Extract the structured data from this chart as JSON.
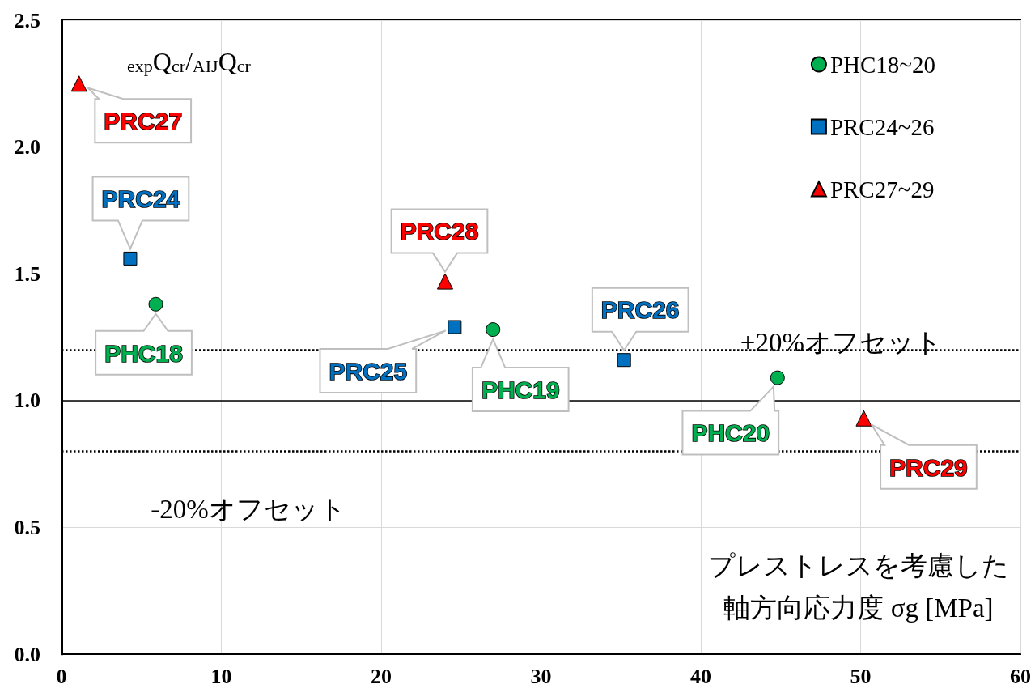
{
  "chart_data": {
    "type": "scatter",
    "ylabel": "$_{exp}$Q$_{cr}$/$_{AIJ}$Q$_{cr}$",
    "xlabel": "プレストレスを考慮した軸方向応力度 σg [MPa]",
    "xlim": [
      0,
      60
    ],
    "ylim": [
      0,
      2.5
    ],
    "xticks": [
      0,
      10,
      20,
      30,
      40,
      50,
      60
    ],
    "yticks": [
      {
        "value": 0,
        "label": "0.0"
      },
      0.5,
      {
        "value": 1,
        "label": "1.0"
      },
      1.5,
      {
        "value": 2,
        "label": "2.0"
      },
      2.5
    ],
    "grid": true,
    "legend": "top right",
    "series": [
      {
        "name": "PHC18~20",
        "color": "#00b050",
        "marker": "circle",
        "x": [
          5.9,
          27.0,
          44.8
        ],
        "values": [
          1.38,
          1.28,
          1.09
        ]
      },
      {
        "name": "PRC24~26",
        "color": "#0070c0",
        "marker": "square",
        "x": [
          4.3,
          24.6,
          35.2
        ],
        "values": [
          1.56,
          1.29,
          1.16
        ]
      },
      {
        "name": "PRC27~29",
        "color": "#ff0000",
        "marker": "triangle",
        "x": [
          1.1,
          24.0,
          50.2
        ],
        "values": [
          2.25,
          1.47,
          0.93
        ]
      }
    ],
    "ref_lines": [
      {
        "axis": "y",
        "value": 1.0,
        "color": "#000000",
        "line_style": "solid"
      },
      {
        "axis": "y",
        "value": 1.2,
        "label": "+20%オフセット",
        "color": "#000000",
        "line_style": "dotted"
      },
      {
        "axis": "y",
        "value": 0.8,
        "label": "-20%オフセット",
        "color": "#000000",
        "line_style": "dotted"
      }
    ],
    "annotations": [
      {
        "text": "PRC27",
        "x": 1.1,
        "y": 2.25
      },
      {
        "text": "PRC24",
        "x": 4.3,
        "y": 1.56
      },
      {
        "text": "PHC18",
        "x": 5.9,
        "y": 1.38
      },
      {
        "text": "PRC28",
        "x": 24.0,
        "y": 1.47
      },
      {
        "text": "PRC25",
        "x": 24.6,
        "y": 1.29
      },
      {
        "text": "PHC19",
        "x": 27.0,
        "y": 1.28
      },
      {
        "text": "PRC26",
        "x": 35.2,
        "y": 1.16
      },
      {
        "text": "PHC20",
        "x": 44.8,
        "y": 1.09
      },
      {
        "text": "PRC29",
        "x": 50.2,
        "y": 0.93
      }
    ]
  }
}
